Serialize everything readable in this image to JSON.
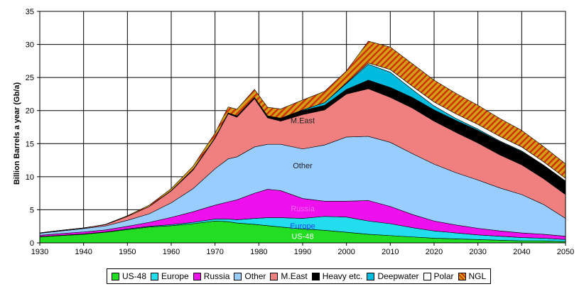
{
  "chart_data": {
    "type": "area",
    "stacked": true,
    "title": "",
    "xlabel": "",
    "ylabel": "Billion Barrels a year (Gb/a)",
    "xlim": [
      1930,
      2050
    ],
    "ylim": [
      0,
      35
    ],
    "x_ticks": [
      1930,
      1940,
      1950,
      1960,
      1970,
      1980,
      1990,
      2000,
      2010,
      2020,
      2030,
      2040,
      2050
    ],
    "y_ticks": [
      0,
      5,
      10,
      15,
      20,
      25,
      30,
      35
    ],
    "grid": true,
    "legend_position": "bottom",
    "x": [
      1930,
      1935,
      1940,
      1945,
      1950,
      1955,
      1960,
      1965,
      1970,
      1973,
      1975,
      1979,
      1982,
      1985,
      1990,
      1995,
      2000,
      2005,
      2010,
      2015,
      2020,
      2025,
      2030,
      2035,
      2040,
      2045,
      2050
    ],
    "series": [
      {
        "name": "US-48",
        "color": "#22dd22",
        "values": [
          0.9,
          1.1,
          1.3,
          1.6,
          2.0,
          2.4,
          2.6,
          2.9,
          3.3,
          3.2,
          3.0,
          2.8,
          2.6,
          2.4,
          2.1,
          1.9,
          1.6,
          1.3,
          1.1,
          0.9,
          0.7,
          0.6,
          0.5,
          0.4,
          0.3,
          0.3,
          0.2
        ]
      },
      {
        "name": "Europe",
        "color": "#22ddee",
        "values": [
          0.05,
          0.05,
          0.05,
          0.05,
          0.1,
          0.1,
          0.15,
          0.2,
          0.3,
          0.4,
          0.5,
          0.9,
          1.2,
          1.4,
          1.6,
          2.1,
          2.3,
          2.0,
          1.8,
          1.4,
          1.1,
          0.9,
          0.7,
          0.6,
          0.5,
          0.4,
          0.3
        ]
      },
      {
        "name": "Russia",
        "color": "#ee11ee",
        "values": [
          0.2,
          0.25,
          0.3,
          0.3,
          0.4,
          0.6,
          1.1,
          1.6,
          2.1,
          2.6,
          3.0,
          3.8,
          4.3,
          4.1,
          3.0,
          2.3,
          2.4,
          3.1,
          2.6,
          2.0,
          1.5,
          1.2,
          1.0,
          0.8,
          0.7,
          0.6,
          0.5
        ]
      },
      {
        "name": "Other",
        "color": "#99ccff",
        "values": [
          0.3,
          0.4,
          0.5,
          0.6,
          0.9,
          1.3,
          2.2,
          3.5,
          5.5,
          6.5,
          6.5,
          7.0,
          6.8,
          7.0,
          7.5,
          8.5,
          9.7,
          9.7,
          9.7,
          9.2,
          8.6,
          7.9,
          7.3,
          6.5,
          5.8,
          4.5,
          2.7
        ]
      },
      {
        "name": "M.East",
        "color": "#f08080",
        "values": [
          0.05,
          0.1,
          0.1,
          0.2,
          0.6,
          1.1,
          1.8,
          2.8,
          4.6,
          6.8,
          6.0,
          7.3,
          4.0,
          3.5,
          5.2,
          5.3,
          6.5,
          7.2,
          6.8,
          6.9,
          6.5,
          6.1,
          5.6,
          5.0,
          4.5,
          3.9,
          3.6
        ]
      },
      {
        "name": "Heavy etc.",
        "color": "#000000",
        "values": [
          0.0,
          0.0,
          0.0,
          0.0,
          0.0,
          0.0,
          0.05,
          0.1,
          0.1,
          0.15,
          0.2,
          0.2,
          0.3,
          0.4,
          0.6,
          0.7,
          0.7,
          1.3,
          1.5,
          1.6,
          1.7,
          1.8,
          1.9,
          2.0,
          2.0,
          2.0,
          2.0
        ]
      },
      {
        "name": "Deepwater",
        "color": "#00bbdd",
        "values": [
          0.0,
          0.0,
          0.0,
          0.0,
          0.0,
          0.0,
          0.0,
          0.0,
          0.0,
          0.0,
          0.0,
          0.0,
          0.0,
          0.05,
          0.1,
          0.4,
          0.9,
          2.4,
          2.3,
          1.2,
          0.6,
          0.3,
          0.2,
          0.1,
          0.1,
          0.05,
          0.05
        ]
      },
      {
        "name": "Polar",
        "color": "#ffffff",
        "values": [
          0.0,
          0.0,
          0.0,
          0.0,
          0.0,
          0.0,
          0.0,
          0.0,
          0.0,
          0.0,
          0.0,
          0.0,
          0.0,
          0.0,
          0.0,
          0.0,
          0.1,
          0.2,
          0.4,
          0.5,
          0.6,
          0.7,
          0.7,
          0.7,
          0.6,
          0.5,
          0.4
        ]
      },
      {
        "name": "NGL",
        "color": "#d4a017",
        "values": [
          0.0,
          0.0,
          0.0,
          0.05,
          0.1,
          0.2,
          0.3,
          0.5,
          0.7,
          0.9,
          1.0,
          1.2,
          1.3,
          1.4,
          1.5,
          1.7,
          1.8,
          3.3,
          3.4,
          3.4,
          3.3,
          3.1,
          2.9,
          2.7,
          2.5,
          2.3,
          2.2
        ]
      }
    ],
    "area_labels": [
      {
        "text": "M.East",
        "x": 1990,
        "y": 18.5,
        "color": "#222222"
      },
      {
        "text": "Other",
        "x": 1990,
        "y": 11.7,
        "color": "#222222"
      },
      {
        "text": "Russia",
        "x": 1990,
        "y": 5.2,
        "color": "#ff66ff"
      },
      {
        "text": "Europe",
        "x": 1990,
        "y": 2.6,
        "color": "#2244ee"
      },
      {
        "text": "US-48",
        "x": 1990,
        "y": 1.0,
        "color": "#ffffff"
      }
    ]
  },
  "legend": {
    "items": [
      {
        "label": "US-48",
        "color": "#22dd22"
      },
      {
        "label": "Europe",
        "color": "#22ddee"
      },
      {
        "label": "Russia",
        "color": "#ee11ee"
      },
      {
        "label": "Other",
        "color": "#99ccff"
      },
      {
        "label": "M.East",
        "color": "#f08080"
      },
      {
        "label": "Heavy etc.",
        "color": "#000000"
      },
      {
        "label": "Deepwater",
        "color": "#00bbdd"
      },
      {
        "label": "Polar",
        "color": "#ffffff"
      },
      {
        "label": "NGL",
        "color": "#d4a017"
      }
    ]
  }
}
